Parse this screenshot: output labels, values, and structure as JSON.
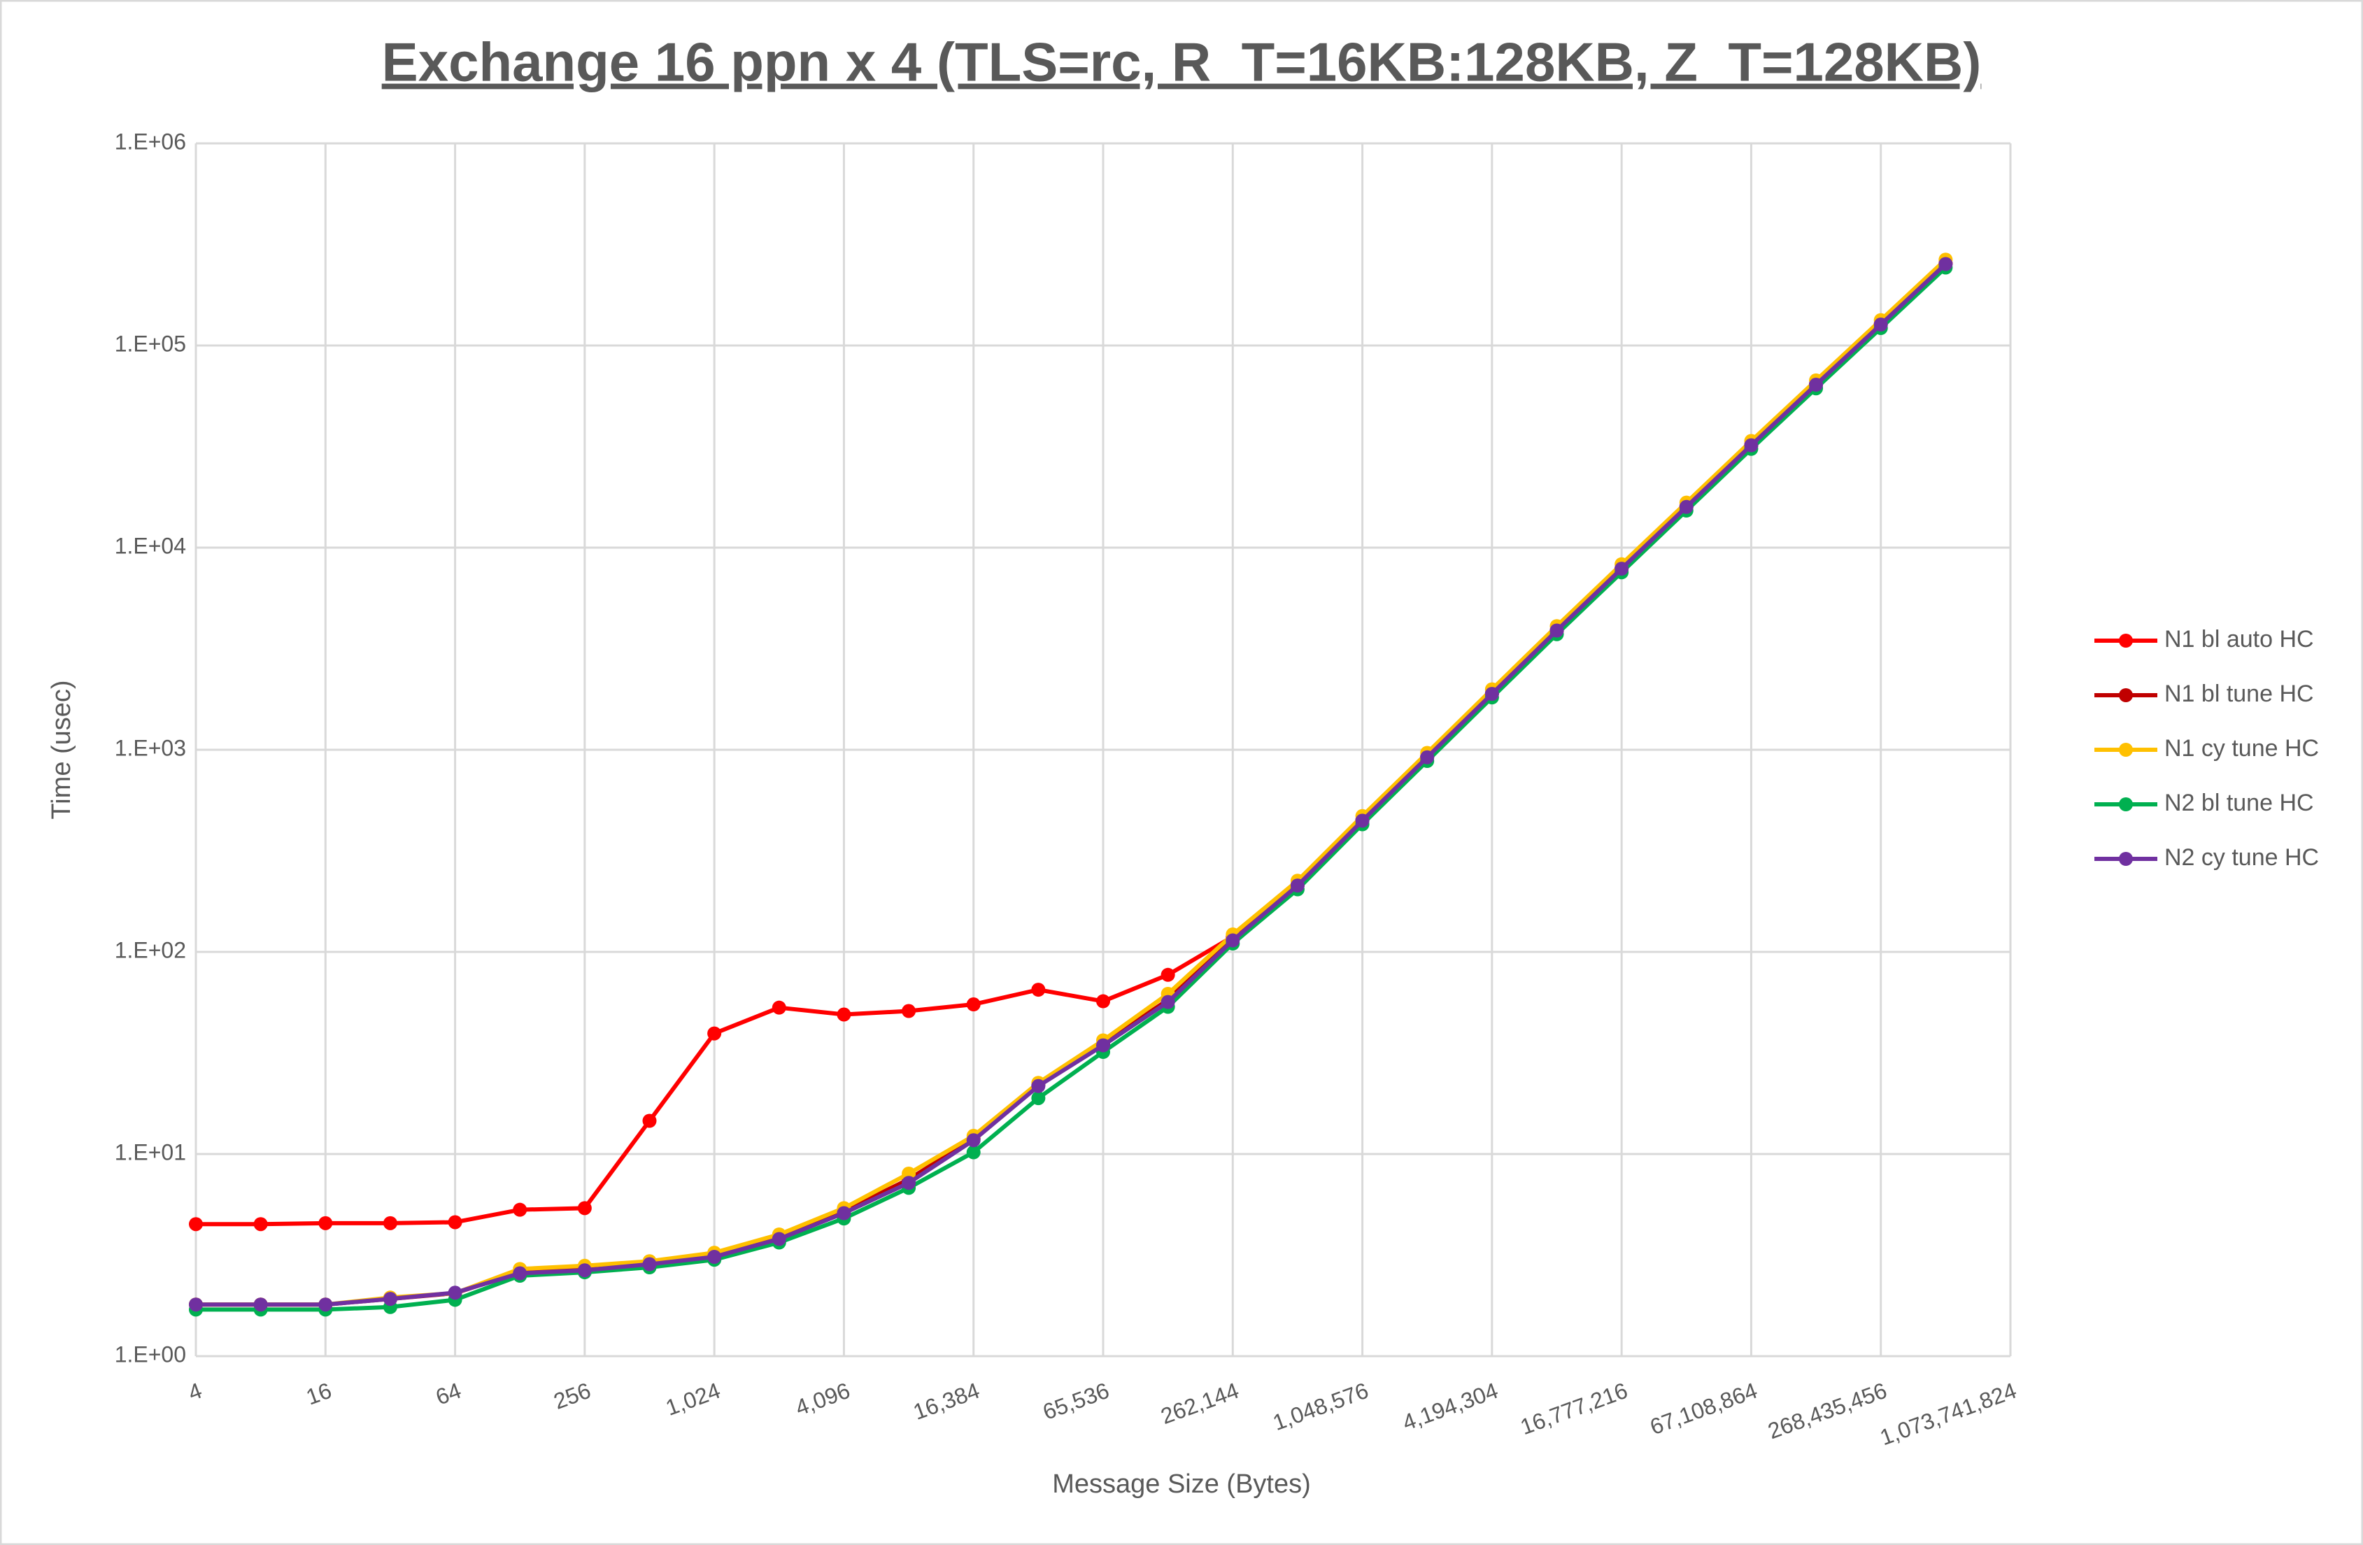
{
  "chart_data": {
    "type": "line",
    "title": "Exchange 16 ppn x 4 (TLS=rc, R_T=16KB:128KB, Z_T=128KB)",
    "x_label": "Message Size (Bytes)",
    "y_label": "Time (usec)",
    "x_scale": "log2",
    "y_scale": "log10",
    "grid": true,
    "legend": "right",
    "xlim": [
      4,
      1073741824
    ],
    "xticks": [
      4,
      16,
      64,
      256,
      {
        "value": 1024,
        "label": "1,024"
      },
      {
        "value": 4096,
        "label": "4,096"
      },
      {
        "value": 16384,
        "label": "16,384"
      },
      {
        "value": 65536,
        "label": "65,536"
      },
      {
        "value": 262144,
        "label": "262,144"
      },
      {
        "value": 1048576,
        "label": "1,048,576"
      },
      {
        "value": 4194304,
        "label": "4,194,304"
      },
      {
        "value": 16777216,
        "label": "16,777,216"
      },
      {
        "value": 67108864,
        "label": "67,108,864"
      },
      {
        "value": 268435456,
        "label": "268,435,456"
      },
      {
        "value": 1073741824,
        "label": "1,073,741,824"
      }
    ],
    "ylim": [
      1,
      1000000
    ],
    "yticks": [
      {
        "value": 1,
        "label": "1.E+00"
      },
      {
        "value": 10,
        "label": "1.E+01"
      },
      {
        "value": 100,
        "label": "1.E+02"
      },
      {
        "value": 1000,
        "label": "1.E+03"
      },
      {
        "value": 10000,
        "label": "1.E+04"
      },
      {
        "value": 100000,
        "label": "1.E+05"
      },
      {
        "value": 1000000,
        "label": "1.E+06"
      }
    ],
    "x": [
      4,
      8,
      16,
      32,
      64,
      128,
      256,
      512,
      1024,
      2048,
      4096,
      8192,
      16384,
      32768,
      65536,
      131072,
      262144,
      524288,
      1048576,
      2097152,
      4194304,
      8388608,
      16777216,
      33554432,
      67108864,
      134217728,
      268435456,
      536870912
    ],
    "series": [
      {
        "name": "N1 bl auto HC",
        "color": "#ff0000",
        "values": [
          4.5,
          4.5,
          4.55,
          4.55,
          4.6,
          5.3,
          5.4,
          14.6,
          39.5,
          53,
          49,
          51,
          55,
          65,
          57,
          77,
          119,
          215,
          450,
          925,
          1900,
          3900,
          7900,
          16000,
          32200,
          64500,
          128000,
          255000
        ]
      },
      {
        "name": "N1 bl tune HC",
        "color": "#c00000",
        "values": [
          1.8,
          1.8,
          1.8,
          1.92,
          2.05,
          2.6,
          2.7,
          2.88,
          3.15,
          3.85,
          5.2,
          7.5,
          11.9,
          22,
          35,
          58,
          116,
          214,
          448,
          920,
          1895,
          3895,
          7880,
          15950,
          32150,
          64200,
          127500,
          254000
        ]
      },
      {
        "name": "N1 cy tune HC",
        "color": "#ffc000",
        "values": [
          1.8,
          1.8,
          1.8,
          1.95,
          2.05,
          2.7,
          2.8,
          2.95,
          3.25,
          4.0,
          5.4,
          8.0,
          12.3,
          22.5,
          36.5,
          62,
          122,
          225,
          470,
          965,
          1990,
          4090,
          8280,
          16700,
          33700,
          67200,
          133500,
          266000
        ]
      },
      {
        "name": "N2 bl tune HC",
        "color": "#00b050",
        "values": [
          1.7,
          1.7,
          1.7,
          1.75,
          1.9,
          2.5,
          2.6,
          2.75,
          3.0,
          3.65,
          4.8,
          6.8,
          10.2,
          18.9,
          32,
          53.5,
          110,
          204,
          428,
          880,
          1815,
          3730,
          7550,
          15250,
          30800,
          61400,
          122000,
          243000
        ]
      },
      {
        "name": "N2 cy tune HC",
        "color": "#7030a0",
        "values": [
          1.8,
          1.8,
          1.8,
          1.92,
          2.06,
          2.57,
          2.66,
          2.85,
          3.1,
          3.8,
          5.1,
          7.2,
          11.7,
          21.7,
          34.5,
          56.5,
          114,
          213,
          446,
          918,
          1890,
          3890,
          7870,
          15900,
          32100,
          64000,
          127000,
          253000
        ]
      }
    ]
  }
}
